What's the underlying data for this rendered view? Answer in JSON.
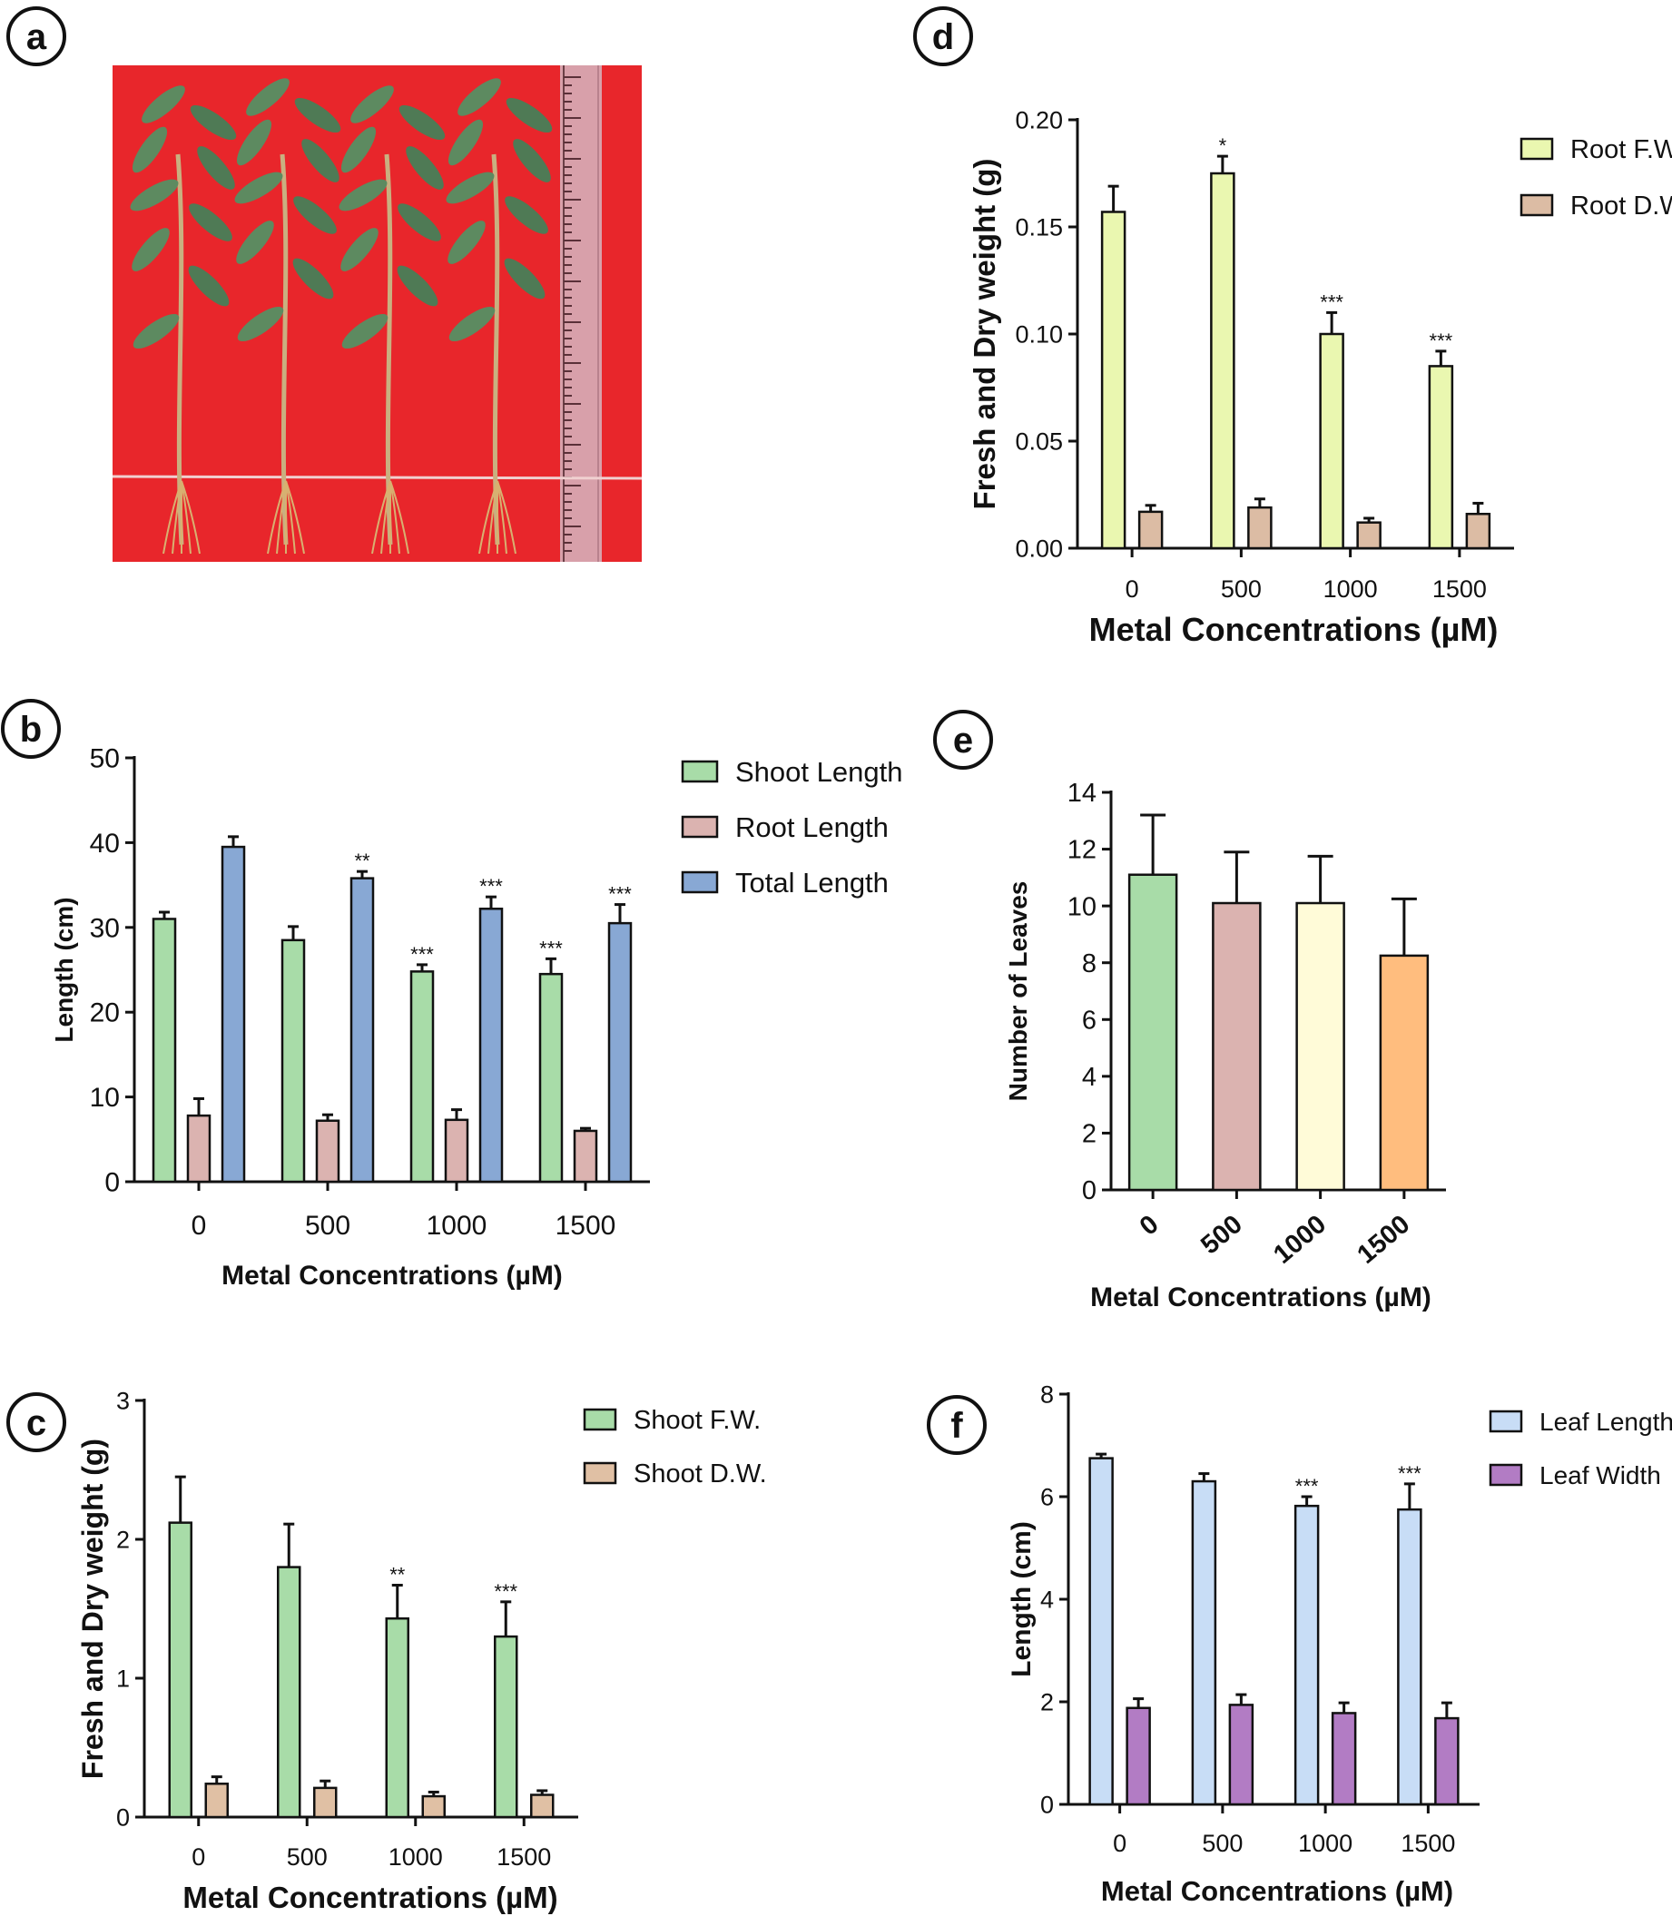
{
  "figure": {
    "panel_labels": [
      "a",
      "b",
      "c",
      "d",
      "e",
      "f"
    ]
  },
  "colors": {
    "shoot_length": "#a8dca8",
    "root_length": "#dbb3b0",
    "total_length": "#88a8d4",
    "shoot_fw": "#a8dca8",
    "shoot_dw": "#e0c0a4",
    "root_fw": "#eaf7b0",
    "root_dw": "#dcbca4",
    "leaf_length": "#c8ddf6",
    "leaf_width": "#b27cc4",
    "leaves_0": "#a8dca8",
    "leaves_500": "#dbb3b0",
    "leaves_1000": "#fffbd8",
    "leaves_1500": "#ffbd7e",
    "photo_background": "#e8262b"
  },
  "chart_data": [
    {
      "panel": "b",
      "type": "bar",
      "xlabel": "Metal Concentrations (µM)",
      "ylabel": "Length (cm)",
      "categories": [
        "0",
        "500",
        "1000",
        "1500"
      ],
      "ylim": [
        0,
        50
      ],
      "yticks": [
        "0",
        "10",
        "20",
        "30",
        "40",
        "50"
      ],
      "legend_position": "top-right",
      "series": [
        {
          "name": "Shoot Length",
          "values": [
            31,
            28.5,
            24.8,
            24.5
          ],
          "errors": [
            0.8,
            1.6,
            0.8,
            1.8
          ],
          "sig": [
            "",
            "",
            "***",
            "***"
          ],
          "color_key": "shoot_length"
        },
        {
          "name": "Root Length",
          "values": [
            7.8,
            7.2,
            7.3,
            6.0
          ],
          "errors": [
            2.0,
            0.7,
            1.2,
            0.3
          ],
          "sig": [
            "",
            "",
            "",
            ""
          ],
          "color_key": "root_length"
        },
        {
          "name": "Total Length",
          "values": [
            39.5,
            35.8,
            32.2,
            30.5
          ],
          "errors": [
            1.2,
            0.8,
            1.4,
            2.2
          ],
          "sig": [
            "",
            "**",
            "***",
            "***"
          ],
          "color_key": "total_length"
        }
      ]
    },
    {
      "panel": "c",
      "type": "bar",
      "xlabel": "Metal Concentrations (µM)",
      "ylabel": "Fresh and Dry weight (g)",
      "categories": [
        "0",
        "500",
        "1000",
        "1500"
      ],
      "ylim": [
        0,
        3
      ],
      "yticks": [
        "0",
        "1",
        "2",
        "3"
      ],
      "legend_position": "top-right",
      "series": [
        {
          "name": "Shoot F.W.",
          "values": [
            2.12,
            1.8,
            1.43,
            1.3
          ],
          "errors": [
            0.33,
            0.31,
            0.24,
            0.25
          ],
          "sig": [
            "",
            "",
            "**",
            "***"
          ],
          "color_key": "shoot_fw"
        },
        {
          "name": "Shoot D.W.",
          "values": [
            0.24,
            0.21,
            0.15,
            0.16
          ],
          "errors": [
            0.05,
            0.05,
            0.03,
            0.03
          ],
          "sig": [
            "",
            "",
            "",
            ""
          ],
          "color_key": "shoot_dw"
        }
      ]
    },
    {
      "panel": "d",
      "type": "bar",
      "xlabel": "Metal Concentrations (µM)",
      "ylabel": "Fresh and Dry weight (g)",
      "categories": [
        "0",
        "500",
        "1000",
        "1500"
      ],
      "ylim": [
        0,
        0.2
      ],
      "yticks": [
        "0.00",
        "0.05",
        "0.10",
        "0.15",
        "0.20"
      ],
      "legend_position": "top-right",
      "series": [
        {
          "name": "Root F.W.",
          "values": [
            0.157,
            0.175,
            0.1,
            0.085
          ],
          "errors": [
            0.012,
            0.008,
            0.01,
            0.007
          ],
          "sig": [
            "",
            "*",
            "***",
            "***"
          ],
          "color_key": "root_fw"
        },
        {
          "name": "Root D.W.",
          "values": [
            0.017,
            0.019,
            0.012,
            0.016
          ],
          "errors": [
            0.003,
            0.004,
            0.002,
            0.005
          ],
          "sig": [
            "",
            "",
            "",
            ""
          ],
          "color_key": "root_dw"
        }
      ]
    },
    {
      "panel": "e",
      "type": "bar",
      "xlabel": "Metal Concentrations (µM)",
      "ylabel": "Number of Leaves",
      "categories": [
        "0",
        "500",
        "1000",
        "1500"
      ],
      "ylim": [
        0,
        14
      ],
      "yticks": [
        "0",
        "2",
        "4",
        "6",
        "8",
        "10",
        "12",
        "14"
      ],
      "tick_rotation": -40,
      "series": [
        {
          "name": "Number of Leaves",
          "values": [
            11.1,
            10.1,
            10.1,
            8.25
          ],
          "errors": [
            2.1,
            1.8,
            1.65,
            2.0
          ],
          "sig": [
            "",
            "",
            "",
            ""
          ],
          "color_keys": [
            "leaves_0",
            "leaves_500",
            "leaves_1000",
            "leaves_1500"
          ]
        }
      ]
    },
    {
      "panel": "f",
      "type": "bar",
      "xlabel": "Metal Concentrations (µM)",
      "ylabel": "Length (cm)",
      "categories": [
        "0",
        "500",
        "1000",
        "1500"
      ],
      "ylim": [
        0,
        8
      ],
      "yticks": [
        "0",
        "2",
        "4",
        "6",
        "8"
      ],
      "legend_position": "top-right",
      "series": [
        {
          "name": "Leaf Length",
          "values": [
            6.75,
            6.3,
            5.82,
            5.75
          ],
          "errors": [
            0.08,
            0.15,
            0.18,
            0.5
          ],
          "sig": [
            "",
            "",
            "***",
            "***"
          ],
          "color_key": "leaf_length"
        },
        {
          "name": "Leaf Width",
          "values": [
            1.88,
            1.94,
            1.78,
            1.68
          ],
          "errors": [
            0.18,
            0.2,
            0.2,
            0.3
          ],
          "sig": [
            "",
            "",
            "",
            ""
          ],
          "color_key": "leaf_width"
        }
      ]
    }
  ]
}
